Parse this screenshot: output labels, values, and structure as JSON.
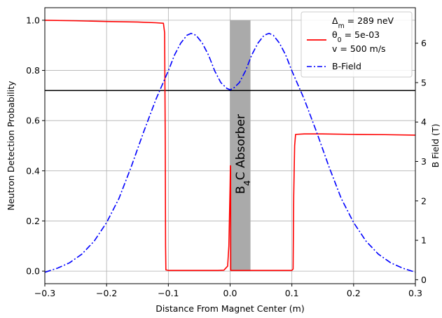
{
  "chart_data": {
    "type": "line",
    "title": "",
    "xlabel": "Distance From Magnet Center (m)",
    "ylabel": "Neutron Detection Probability",
    "y2label": "B Field (T)",
    "xlim": [
      -0.3,
      0.3
    ],
    "ylim": [
      -0.05,
      1.05
    ],
    "y2lim": [
      -0.1,
      6.9
    ],
    "x_ticks": [
      "−0.3",
      "−0.2",
      "−0.1",
      "0.0",
      "0.1",
      "0.2",
      "0.3"
    ],
    "y_ticks": [
      "0.0",
      "0.2",
      "0.4",
      "0.6",
      "0.8",
      "1.0"
    ],
    "y2_ticks": [
      "0",
      "1",
      "2",
      "3",
      "4",
      "5",
      "6"
    ],
    "grid": true,
    "legend_placement": "top-right",
    "legend": {
      "header": [
        "Δm = 289 neV"
      ],
      "entries": [
        {
          "name_lines": [
            "θ0 = 5e-03",
            "v = 500 m/s"
          ],
          "color": "#ff0000",
          "style": "solid"
        },
        {
          "name_lines": [
            "B-Field"
          ],
          "color": "#0000ff",
          "style": "dash-dot"
        }
      ]
    },
    "absorber": {
      "label": "B4C Absorber",
      "x_range": [
        0.0,
        0.033
      ],
      "color": "#aaaaaa"
    },
    "horizontal_line": {
      "y": 0.72,
      "color": "#000000"
    },
    "series": [
      {
        "name": "θ0 = 5e-03, v = 500 m/s",
        "axis": "left",
        "color": "#ff0000",
        "points": [
          [
            -0.3,
            1.0
          ],
          [
            -0.25,
            0.998
          ],
          [
            -0.2,
            0.995
          ],
          [
            -0.15,
            0.993
          ],
          [
            -0.12,
            0.99
          ],
          [
            -0.108,
            0.988
          ],
          [
            -0.106,
            0.95
          ],
          [
            -0.105,
            0.5
          ],
          [
            -0.1045,
            0.1
          ],
          [
            -0.104,
            0.005
          ],
          [
            -0.1,
            0.003
          ],
          [
            -0.05,
            0.003
          ],
          [
            -0.02,
            0.003
          ],
          [
            -0.01,
            0.004
          ],
          [
            -0.004,
            0.02
          ],
          [
            -0.002,
            0.1
          ],
          [
            -0.001,
            0.22
          ],
          [
            0.0,
            0.34
          ],
          [
            0.0005,
            0.42
          ],
          [
            0.0008,
            0.42
          ],
          [
            0.001,
            0.003
          ],
          [
            0.05,
            0.003
          ],
          [
            0.1,
            0.003
          ],
          [
            0.102,
            0.008
          ],
          [
            0.103,
            0.3
          ],
          [
            0.1045,
            0.5
          ],
          [
            0.106,
            0.545
          ],
          [
            0.12,
            0.547
          ],
          [
            0.15,
            0.547
          ],
          [
            0.2,
            0.545
          ],
          [
            0.25,
            0.544
          ],
          [
            0.3,
            0.542
          ]
        ]
      },
      {
        "name": "B-Field",
        "axis": "right",
        "color": "#0000ff",
        "points": [
          [
            -0.3,
            0.19
          ],
          [
            -0.28,
            0.29
          ],
          [
            -0.26,
            0.43
          ],
          [
            -0.24,
            0.65
          ],
          [
            -0.22,
            0.98
          ],
          [
            -0.2,
            1.45
          ],
          [
            -0.18,
            2.06
          ],
          [
            -0.16,
            2.87
          ],
          [
            -0.14,
            3.75
          ],
          [
            -0.12,
            4.58
          ],
          [
            -0.1,
            5.3
          ],
          [
            -0.09,
            5.7
          ],
          [
            -0.08,
            6.0
          ],
          [
            -0.07,
            6.2
          ],
          [
            -0.063,
            6.25
          ],
          [
            -0.055,
            6.2
          ],
          [
            -0.045,
            6.0
          ],
          [
            -0.035,
            5.7
          ],
          [
            -0.025,
            5.3
          ],
          [
            -0.015,
            5.0
          ],
          [
            -0.005,
            4.85
          ],
          [
            0.0,
            4.82
          ],
          [
            0.005,
            4.85
          ],
          [
            0.015,
            5.0
          ],
          [
            0.025,
            5.3
          ],
          [
            0.035,
            5.7
          ],
          [
            0.045,
            6.0
          ],
          [
            0.055,
            6.2
          ],
          [
            0.063,
            6.25
          ],
          [
            0.07,
            6.2
          ],
          [
            0.08,
            6.0
          ],
          [
            0.09,
            5.7
          ],
          [
            0.1,
            5.3
          ],
          [
            0.12,
            4.58
          ],
          [
            0.14,
            3.75
          ],
          [
            0.16,
            2.87
          ],
          [
            0.18,
            2.06
          ],
          [
            0.2,
            1.45
          ],
          [
            0.22,
            0.98
          ],
          [
            0.24,
            0.65
          ],
          [
            0.26,
            0.43
          ],
          [
            0.28,
            0.29
          ],
          [
            0.3,
            0.19
          ]
        ]
      }
    ]
  }
}
